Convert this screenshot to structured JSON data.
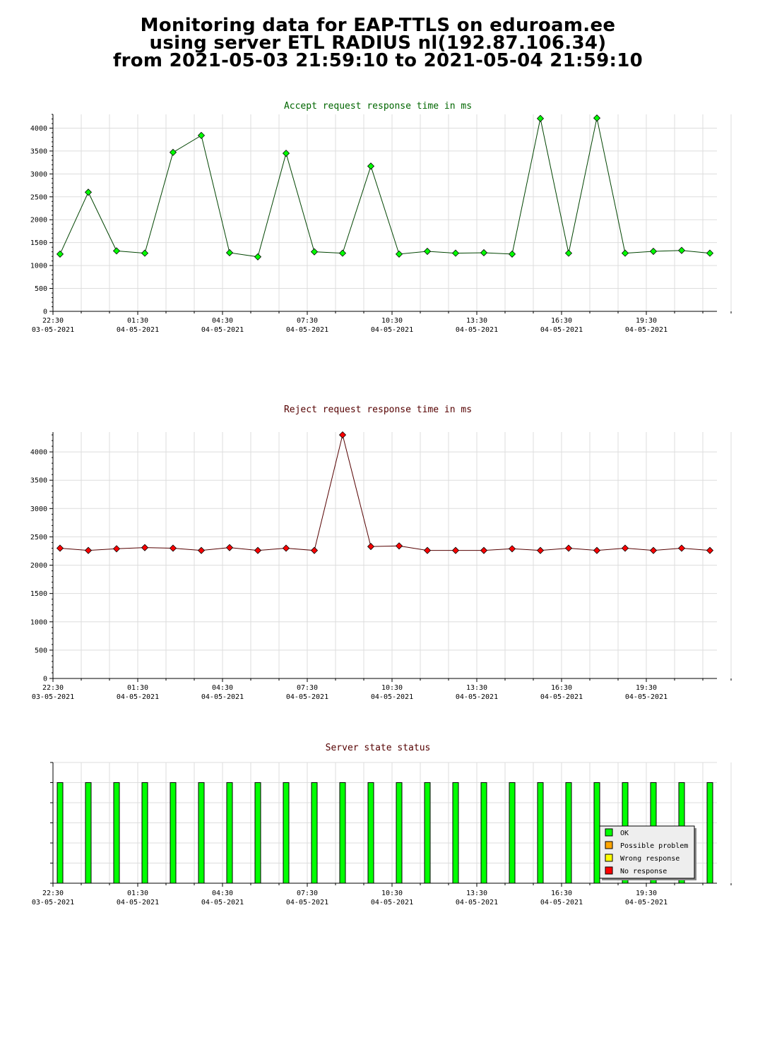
{
  "page": {
    "title_lines": [
      "Monitoring data for EAP-TTLS on eduroam.ee",
      "using server ETL RADIUS nl(192.87.106.34)",
      "from 2021-05-03 21:59:10 to 2021-05-04 21:59:10"
    ]
  },
  "colors": {
    "accept_marker": "#00ff00",
    "accept_line": "#004400",
    "accept_title": "#006600",
    "reject_marker": "#ff0000",
    "reject_line": "#550000",
    "reject_title": "#550000",
    "status_title": "#550000",
    "grid": "#dddddd",
    "ok": "#00ff00",
    "possible_problem": "#ffa500",
    "wrong_response": "#ffff00",
    "no_response": "#ff0000"
  },
  "chart_data": [
    {
      "type": "line",
      "title": "Accept request response time in ms",
      "x_tick_labels": [
        {
          "time": "22:30",
          "date": "03-05-2021"
        },
        {
          "time": "01:30",
          "date": "04-05-2021"
        },
        {
          "time": "04:30",
          "date": "04-05-2021"
        },
        {
          "time": "07:30",
          "date": "04-05-2021"
        },
        {
          "time": "10:30",
          "date": "04-05-2021"
        },
        {
          "time": "13:30",
          "date": "04-05-2021"
        },
        {
          "time": "16:30",
          "date": "04-05-2021"
        },
        {
          "time": "19:30",
          "date": "04-05-2021"
        }
      ],
      "x_range": [
        "22:30",
        "22:00"
      ],
      "x_step_hours": 1,
      "ylim": [
        0,
        4300
      ],
      "y_ticks": [
        0,
        500,
        1000,
        1500,
        2000,
        2500,
        3000,
        3500,
        4000
      ],
      "grid": true,
      "x": [
        "22:45",
        "23:45",
        "00:45",
        "01:45",
        "02:45",
        "03:45",
        "04:45",
        "05:45",
        "06:45",
        "07:45",
        "08:45",
        "09:45",
        "10:45",
        "11:45",
        "12:45",
        "13:45",
        "14:45",
        "15:45",
        "16:45",
        "17:45",
        "18:45",
        "19:45",
        "20:45",
        "21:45"
      ],
      "values": [
        1250,
        2600,
        1320,
        1270,
        3470,
        3840,
        1280,
        1190,
        3450,
        1300,
        1270,
        3170,
        1250,
        1310,
        1270,
        1280,
        1250,
        4210,
        1270,
        4220,
        1270,
        1310,
        1330,
        1270
      ]
    },
    {
      "type": "line",
      "title": "Reject request response time in ms",
      "x_tick_labels": [
        {
          "time": "22:30",
          "date": "03-05-2021"
        },
        {
          "time": "01:30",
          "date": "04-05-2021"
        },
        {
          "time": "04:30",
          "date": "04-05-2021"
        },
        {
          "time": "07:30",
          "date": "04-05-2021"
        },
        {
          "time": "10:30",
          "date": "04-05-2021"
        },
        {
          "time": "13:30",
          "date": "04-05-2021"
        },
        {
          "time": "16:30",
          "date": "04-05-2021"
        },
        {
          "time": "19:30",
          "date": "04-05-2021"
        }
      ],
      "x_range": [
        "22:30",
        "22:00"
      ],
      "x_step_hours": 1,
      "ylim": [
        0,
        4350
      ],
      "y_ticks": [
        0,
        500,
        1000,
        1500,
        2000,
        2500,
        3000,
        3500,
        4000
      ],
      "grid": true,
      "x": [
        "22:45",
        "23:45",
        "00:45",
        "01:45",
        "02:45",
        "03:45",
        "04:45",
        "05:45",
        "06:45",
        "07:45",
        "08:45",
        "09:45",
        "10:45",
        "11:45",
        "12:45",
        "13:45",
        "14:45",
        "15:45",
        "16:45",
        "17:45",
        "18:45",
        "19:45",
        "20:45",
        "21:45"
      ],
      "values": [
        2300,
        2260,
        2290,
        2310,
        2300,
        2260,
        2310,
        2260,
        2300,
        2260,
        4300,
        2330,
        2340,
        2260,
        2260,
        2260,
        2290,
        2260,
        2300,
        2260,
        2300,
        2260,
        2300,
        2260
      ]
    },
    {
      "type": "bar",
      "title": "Server state status",
      "x_tick_labels": [
        {
          "time": "22:30",
          "date": "03-05-2021"
        },
        {
          "time": "01:30",
          "date": "04-05-2021"
        },
        {
          "time": "04:30",
          "date": "04-05-2021"
        },
        {
          "time": "07:30",
          "date": "04-05-2021"
        },
        {
          "time": "10:30",
          "date": "04-05-2021"
        },
        {
          "time": "13:30",
          "date": "04-05-2021"
        },
        {
          "time": "16:30",
          "date": "04-05-2021"
        },
        {
          "time": "19:30",
          "date": "04-05-2021"
        }
      ],
      "x_range": [
        "22:30",
        "22:00"
      ],
      "x_step_hours": 1,
      "x": [
        "22:45",
        "23:45",
        "00:45",
        "01:45",
        "02:45",
        "03:45",
        "04:45",
        "05:45",
        "06:45",
        "07:45",
        "08:45",
        "09:45",
        "10:45",
        "11:45",
        "12:45",
        "13:45",
        "14:45",
        "15:45",
        "16:45",
        "17:45",
        "18:45",
        "19:45",
        "20:45",
        "21:45"
      ],
      "states": [
        "OK",
        "OK",
        "OK",
        "OK",
        "OK",
        "OK",
        "OK",
        "OK",
        "OK",
        "OK",
        "OK",
        "OK",
        "OK",
        "OK",
        "OK",
        "OK",
        "OK",
        "OK",
        "OK",
        "OK",
        "OK",
        "OK",
        "OK",
        "OK"
      ],
      "legend": [
        {
          "label": "OK",
          "color": "#00ff00"
        },
        {
          "label": "Possible problem",
          "color": "#ffa500"
        },
        {
          "label": "Wrong response",
          "color": "#ffff00"
        },
        {
          "label": "No response",
          "color": "#ff0000"
        }
      ],
      "legend_position": "bottom-right"
    }
  ]
}
